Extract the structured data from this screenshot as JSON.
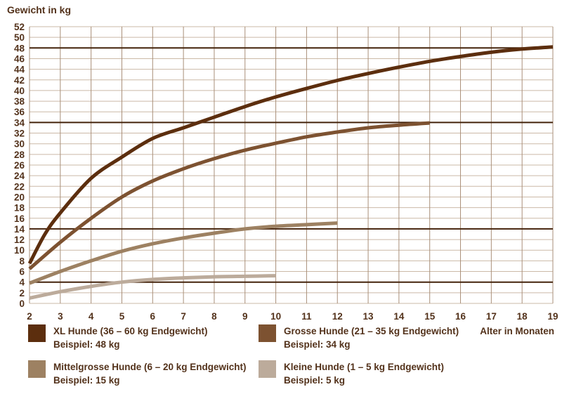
{
  "chart_data": {
    "type": "line",
    "title": "Gewicht in kg",
    "xlabel": "Alter in Monaten",
    "ylabel": "Gewicht in kg",
    "xlim": [
      2,
      19
    ],
    "ylim": [
      0,
      52
    ],
    "x_ticks": [
      2,
      3,
      4,
      5,
      6,
      7,
      8,
      9,
      10,
      11,
      12,
      13,
      14,
      15,
      16,
      17,
      18,
      19
    ],
    "y_ticks": [
      0,
      2,
      4,
      6,
      8,
      10,
      12,
      14,
      16,
      18,
      20,
      22,
      24,
      26,
      28,
      30,
      32,
      34,
      36,
      38,
      40,
      42,
      44,
      46,
      48,
      50,
      52
    ],
    "grid": true,
    "legend_position": "bottom",
    "reference_lines": [
      48,
      34,
      14,
      4
    ],
    "colors": {
      "grid_h": "#cbb9a7",
      "grid_v": "#a98f79",
      "reference": "#44230b",
      "text": "#53321b"
    },
    "series": [
      {
        "id": "xl-hunde",
        "name": "XL Hunde (36 – 60 kg Endgewicht)",
        "example": "Beispiel: 48 kg",
        "color": "#5c2e0e",
        "x": [
          2,
          2.5,
          3,
          4,
          5,
          6,
          7,
          8,
          9,
          10,
          11,
          12,
          13,
          14,
          15,
          16,
          17,
          18,
          19
        ],
        "y": [
          7.5,
          13,
          17,
          23.5,
          27.5,
          31,
          33,
          35,
          37,
          38.8,
          40.4,
          41.9,
          43.2,
          44.4,
          45.5,
          46.4,
          47.2,
          47.8,
          48.2
        ]
      },
      {
        "id": "grosse-hunde",
        "name": "Grosse Hunde (21 – 35 kg Endgewicht)",
        "example": "Beispiel: 34 kg",
        "color": "#7d5231",
        "x": [
          2,
          3,
          4,
          5,
          6,
          7,
          8,
          9,
          10,
          11,
          12,
          13,
          14,
          15
        ],
        "y": [
          6.5,
          11.5,
          16,
          20,
          23,
          25.3,
          27.2,
          28.8,
          30.1,
          31.3,
          32.2,
          33,
          33.5,
          33.9
        ]
      },
      {
        "id": "mittelgrosse-hunde",
        "name": "Mittelgrosse Hunde (6 – 20 kg Endgewicht)",
        "example": "Beispiel: 15 kg",
        "color": "#9d8162",
        "x": [
          2,
          3,
          4,
          5,
          6,
          7,
          8,
          9,
          10,
          11,
          12
        ],
        "y": [
          3.8,
          6,
          8,
          9.8,
          11.2,
          12.3,
          13.2,
          14,
          14.5,
          14.8,
          15.1
        ]
      },
      {
        "id": "kleine-hunde",
        "name": "Kleine Hunde (1 – 5 kg Endgewicht)",
        "example": "Beispiel: 5 kg",
        "color": "#bcab9b",
        "x": [
          2,
          3,
          4,
          5,
          6,
          7,
          8,
          9,
          10
        ],
        "y": [
          1,
          2.2,
          3.2,
          4,
          4.5,
          4.8,
          5,
          5.1,
          5.2
        ]
      }
    ]
  },
  "legend": {
    "items": [
      {
        "label": "XL Hunde (36 – 60 kg Endgewicht)",
        "example": "Beispiel: 48 kg",
        "color": "#5c2e0e"
      },
      {
        "label": "Grosse Hunde (21 – 35 kg Endgewicht)",
        "example": "Beispiel: 34 kg",
        "color": "#7d5231"
      },
      {
        "label": "Mittelgrosse Hunde (6 – 20 kg Endgewicht)",
        "example": "Beispiel: 15 kg",
        "color": "#9d8162"
      },
      {
        "label": "Kleine Hunde (1 – 5 kg Endgewicht)",
        "example": "Beispiel: 5 kg",
        "color": "#bcab9b"
      }
    ]
  }
}
